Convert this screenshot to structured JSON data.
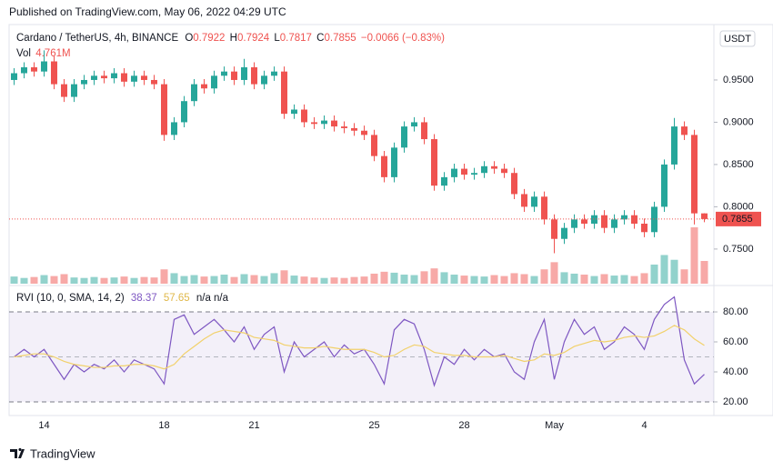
{
  "published": "Published on TradingView.com, May 06, 2022 04:29 UTC",
  "footer": "TradingView",
  "chart_data": {
    "type": "candlestick",
    "legend": {
      "symbol": "Cardano / TetherUS, 4h, BINANCE",
      "labels": [
        "O",
        "H",
        "L",
        "C"
      ],
      "open": 0.7922,
      "high": 0.7924,
      "low": 0.7817,
      "close": 0.7855,
      "change": "−0.0066 (−0.83%)",
      "volume_label": "Vol",
      "volume_value_label": "4.761M"
    },
    "currency": "USDT",
    "up_color": "#26a69a",
    "down_color": "#ef5350",
    "categories": [
      null,
      null,
      null,
      "14",
      null,
      null,
      null,
      null,
      null,
      null,
      null,
      null,
      null,
      null,
      null,
      "18",
      null,
      null,
      null,
      null,
      null,
      null,
      null,
      null,
      "21",
      null,
      null,
      null,
      null,
      null,
      null,
      null,
      null,
      null,
      null,
      null,
      "25",
      null,
      null,
      null,
      null,
      null,
      null,
      null,
      null,
      "28",
      null,
      null,
      null,
      null,
      null,
      null,
      null,
      null,
      "May",
      null,
      null,
      null,
      null,
      null,
      null,
      null,
      null,
      "4",
      null,
      null,
      null,
      null,
      null,
      null
    ],
    "open": [
      0.95,
      0.958,
      0.965,
      0.96,
      0.972,
      0.945,
      0.93,
      0.945,
      0.95,
      0.955,
      0.952,
      0.958,
      0.948,
      0.955,
      0.95,
      0.945,
      0.885,
      0.9,
      0.925,
      0.945,
      0.94,
      0.955,
      0.96,
      0.95,
      0.965,
      0.945,
      0.955,
      0.96,
      0.91,
      0.915,
      0.9,
      0.898,
      0.902,
      0.895,
      0.893,
      0.89,
      0.885,
      0.86,
      0.835,
      0.87,
      0.895,
      0.9,
      0.88,
      0.825,
      0.835,
      0.845,
      0.838,
      0.84,
      0.848,
      0.845,
      0.84,
      0.815,
      0.8,
      0.812,
      0.785,
      0.762,
      0.775,
      0.785,
      0.78,
      0.79,
      0.775,
      0.785,
      0.79,
      0.78,
      0.77,
      0.8,
      0.85,
      0.895,
      0.885,
      0.7922
    ],
    "high": [
      0.964,
      0.971,
      0.971,
      0.985,
      0.978,
      0.951,
      0.951,
      0.956,
      0.961,
      0.961,
      0.964,
      0.964,
      0.961,
      0.961,
      0.956,
      0.951,
      0.906,
      0.931,
      0.951,
      0.951,
      0.961,
      0.966,
      0.966,
      0.975,
      0.971,
      0.961,
      0.966,
      0.966,
      0.921,
      0.921,
      0.906,
      0.908,
      0.908,
      0.901,
      0.899,
      0.896,
      0.891,
      0.866,
      0.876,
      0.901,
      0.906,
      0.906,
      0.886,
      0.841,
      0.851,
      0.851,
      0.846,
      0.854,
      0.854,
      0.851,
      0.846,
      0.821,
      0.818,
      0.818,
      0.791,
      0.781,
      0.791,
      0.791,
      0.796,
      0.796,
      0.791,
      0.796,
      0.796,
      0.786,
      0.806,
      0.856,
      0.905,
      0.901,
      0.891,
      0.7924
    ],
    "low": [
      0.944,
      0.952,
      0.954,
      0.954,
      0.939,
      0.924,
      0.924,
      0.939,
      0.944,
      0.946,
      0.946,
      0.942,
      0.942,
      0.944,
      0.939,
      0.878,
      0.879,
      0.894,
      0.919,
      0.934,
      0.934,
      0.949,
      0.944,
      0.944,
      0.939,
      0.939,
      0.949,
      0.904,
      0.904,
      0.894,
      0.892,
      0.892,
      0.889,
      0.887,
      0.884,
      0.879,
      0.854,
      0.829,
      0.829,
      0.864,
      0.889,
      0.874,
      0.819,
      0.819,
      0.829,
      0.832,
      0.832,
      0.834,
      0.839,
      0.834,
      0.809,
      0.794,
      0.794,
      0.779,
      0.745,
      0.756,
      0.769,
      0.774,
      0.774,
      0.769,
      0.769,
      0.779,
      0.774,
      0.764,
      0.764,
      0.794,
      0.844,
      0.879,
      0.779,
      0.7817
    ],
    "close": [
      0.958,
      0.965,
      0.96,
      0.972,
      0.945,
      0.93,
      0.945,
      0.95,
      0.955,
      0.952,
      0.958,
      0.948,
      0.955,
      0.95,
      0.945,
      0.885,
      0.9,
      0.925,
      0.945,
      0.94,
      0.955,
      0.96,
      0.95,
      0.965,
      0.945,
      0.955,
      0.96,
      0.91,
      0.915,
      0.9,
      0.898,
      0.902,
      0.895,
      0.893,
      0.89,
      0.885,
      0.86,
      0.835,
      0.87,
      0.895,
      0.9,
      0.88,
      0.825,
      0.835,
      0.845,
      0.838,
      0.84,
      0.848,
      0.845,
      0.84,
      0.815,
      0.8,
      0.812,
      0.785,
      0.762,
      0.775,
      0.785,
      0.78,
      0.79,
      0.775,
      0.785,
      0.79,
      0.78,
      0.77,
      0.8,
      0.85,
      0.895,
      0.885,
      0.7922,
      0.7855
    ],
    "volume": [
      1.5,
      1.2,
      1.4,
      1.8,
      1.6,
      2.0,
      1.3,
      1.2,
      1.4,
      1.2,
      1.3,
      1.5,
      1.2,
      1.4,
      1.3,
      3.0,
      2.2,
      1.6,
      1.8,
      1.5,
      1.6,
      1.9,
      1.4,
      2.0,
      1.8,
      1.6,
      2.2,
      2.8,
      1.7,
      1.5,
      1.3,
      1.2,
      1.3,
      1.2,
      1.4,
      1.5,
      2.1,
      2.5,
      2.3,
      1.9,
      1.8,
      2.6,
      3.2,
      2.4,
      1.9,
      1.7,
      1.6,
      1.5,
      1.8,
      1.6,
      2.2,
      2.0,
      1.6,
      3.0,
      4.5,
      2.4,
      2.1,
      1.9,
      1.6,
      2.0,
      1.7,
      1.8,
      1.6,
      2.2,
      4.0,
      6.0,
      5.0,
      3.0,
      11.8,
      4.761
    ],
    "ylim": [
      0.709,
      1.0145
    ],
    "yticks": [
      {
        "value": 0.75,
        "label": "0.7500"
      },
      {
        "value": 0.8,
        "label": "0.8000"
      },
      {
        "value": 0.85,
        "label": "0.8500"
      },
      {
        "value": 0.9,
        "label": "0.9000"
      },
      {
        "value": 0.95,
        "label": "0.9500"
      }
    ],
    "indicator": {
      "title": "RVI (10, 0, SMA, 14, 2)",
      "na": "n/a n/a",
      "series": [
        {
          "name": "RVI",
          "color": "#7e57c2",
          "values": [
            50,
            55,
            50,
            55,
            45,
            35,
            45,
            40,
            45,
            42,
            48,
            40,
            48,
            45,
            42,
            32,
            75,
            78,
            65,
            70,
            75,
            68,
            60,
            70,
            55,
            65,
            70,
            40,
            60,
            50,
            55,
            60,
            50,
            58,
            52,
            55,
            45,
            32,
            68,
            75,
            72,
            55,
            31,
            50,
            45,
            55,
            48,
            55,
            50,
            52,
            40,
            35,
            60,
            75,
            35,
            60,
            75,
            65,
            70,
            55,
            60,
            70,
            65,
            55,
            75,
            85,
            90,
            48,
            32,
            38.37
          ]
        },
        {
          "name": "Signal",
          "color": "#f2d16b",
          "values": [
            50,
            51,
            52,
            52,
            50,
            47,
            45,
            44,
            43,
            43,
            44,
            44,
            45,
            45,
            44,
            42,
            45,
            52,
            57,
            62,
            66,
            68,
            67,
            66,
            63,
            62,
            61,
            58,
            57,
            56,
            56,
            57,
            56,
            55,
            55,
            55,
            53,
            50,
            51,
            55,
            58,
            57,
            53,
            52,
            51,
            51,
            50,
            50,
            50,
            51,
            49,
            47,
            48,
            52,
            51,
            53,
            57,
            59,
            61,
            60,
            61,
            63,
            64,
            63,
            64,
            67,
            71,
            68,
            62,
            57.65
          ]
        }
      ],
      "levels": [
        20,
        50,
        80
      ],
      "ylim": [
        12.1,
        97
      ],
      "yticks": [
        {
          "value": 20,
          "label": "20.00"
        },
        {
          "value": 40,
          "label": "40.00"
        },
        {
          "value": 60,
          "label": "60.00"
        },
        {
          "value": 80,
          "label": "80.00"
        }
      ]
    }
  }
}
